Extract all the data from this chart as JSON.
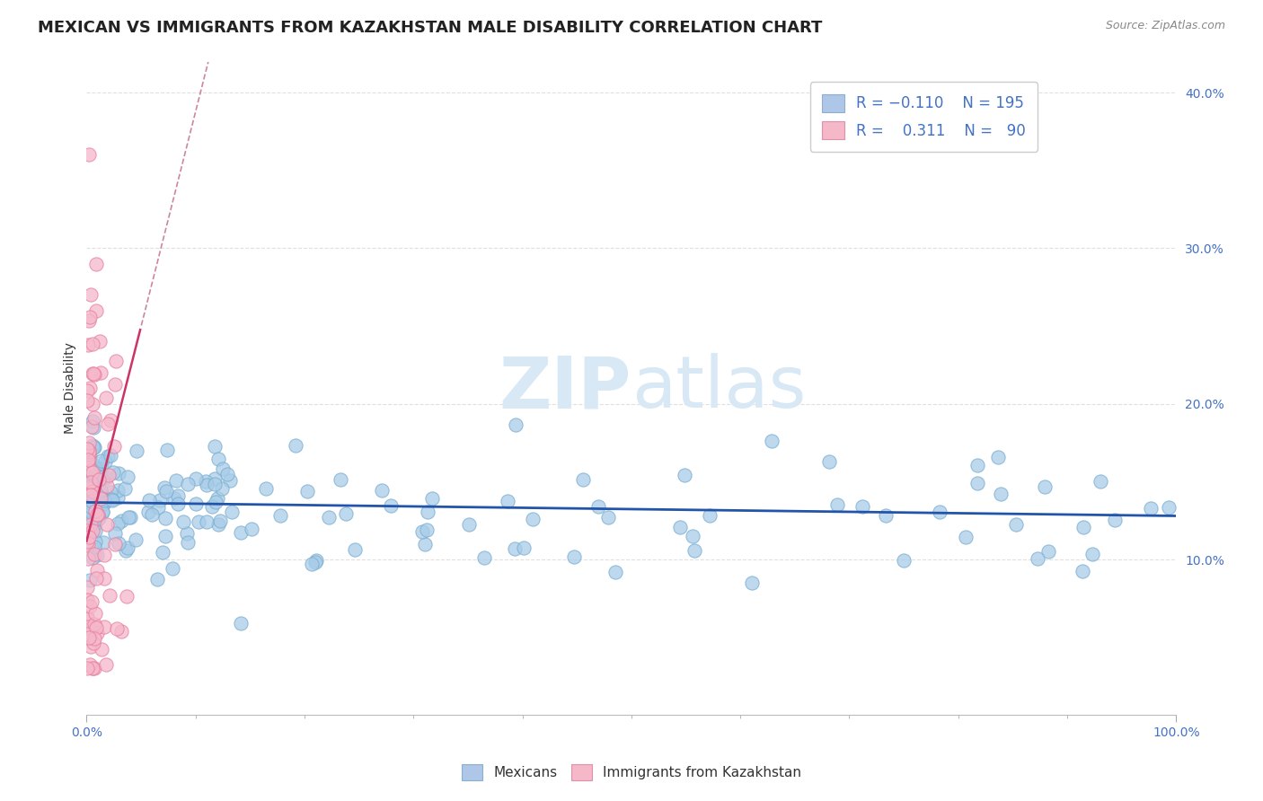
{
  "title": "MEXICAN VS IMMIGRANTS FROM KAZAKHSTAN MALE DISABILITY CORRELATION CHART",
  "source": "Source: ZipAtlas.com",
  "ylabel": "Male Disability",
  "r_mexican": -0.11,
  "n_mexican": 195,
  "r_kazakhstan": 0.311,
  "n_kazakhstan": 90,
  "xlim": [
    0,
    1
  ],
  "ylim": [
    0,
    0.42
  ],
  "yticks": [
    0.1,
    0.2,
    0.3,
    0.4
  ],
  "ytick_labels": [
    "10.0%",
    "20.0%",
    "30.0%",
    "40.0%"
  ],
  "blue_dot_color": "#a8cce8",
  "blue_dot_edge": "#7aaed0",
  "pink_dot_color": "#f5b8cb",
  "pink_dot_edge": "#e880a0",
  "blue_line_color": "#2255aa",
  "pink_line_color": "#cc3366",
  "pink_dash_color": "#cc8899",
  "watermark_color": "#d8e8f5",
  "title_fontsize": 13,
  "axis_label_fontsize": 10,
  "tick_fontsize": 10,
  "tick_color": "#4472c4",
  "background_color": "#ffffff",
  "grid_color": "#e0e0e0"
}
